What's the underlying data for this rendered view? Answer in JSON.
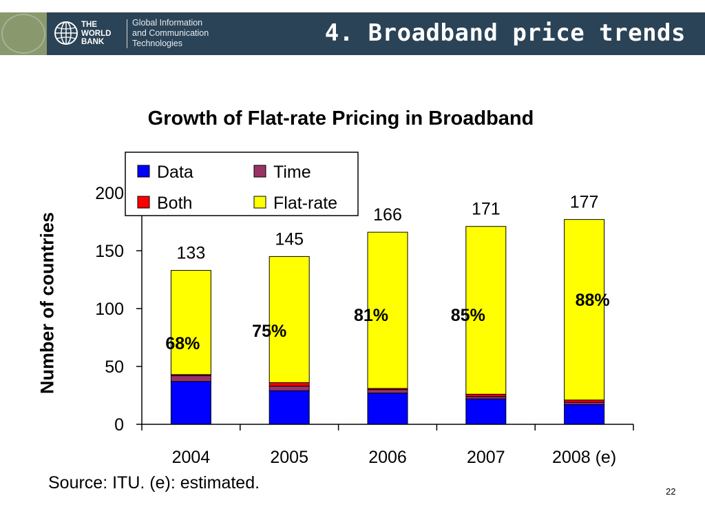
{
  "header": {
    "logo_lines": [
      "THE",
      "WORLD",
      "BANK"
    ],
    "unit_lines": [
      "Global Information",
      "and Communication",
      "Technologies"
    ],
    "slide_title": "4. Broadband price trends"
  },
  "source_note": "Source: ITU. (e): estimated.",
  "page_number": "22",
  "colors": {
    "banner": "#2b4356",
    "Data": "#0000ff",
    "Time": "#993366",
    "Both": "#ff0000",
    "Flat-rate": "#ffff00"
  },
  "chart_data": {
    "type": "bar",
    "stacked": true,
    "title": "Growth of Flat-rate Pricing in Broadband",
    "xlabel": "",
    "ylabel": "Number of countries",
    "ylim": [
      0,
      200
    ],
    "yticks": [
      0,
      50,
      100,
      150,
      200
    ],
    "grid": false,
    "legend_position": "top-left",
    "legend": [
      "Data",
      "Time",
      "Both",
      "Flat-rate"
    ],
    "categories": [
      "2004",
      "2005",
      "2006",
      "2007",
      "2008 (e)"
    ],
    "series": [
      {
        "name": "Data",
        "values": [
          37,
          29,
          27,
          22,
          17
        ]
      },
      {
        "name": "Time",
        "values": [
          5,
          4,
          3,
          2,
          2
        ]
      },
      {
        "name": "Both",
        "values": [
          1,
          3,
          1,
          2,
          2
        ]
      },
      {
        "name": "Flat-rate",
        "values": [
          90,
          109,
          135,
          145,
          156
        ]
      }
    ],
    "totals": [
      133,
      145,
      166,
      171,
      177
    ],
    "percent_labels": [
      "68%",
      "75%",
      "81%",
      "85%",
      "88%"
    ]
  }
}
